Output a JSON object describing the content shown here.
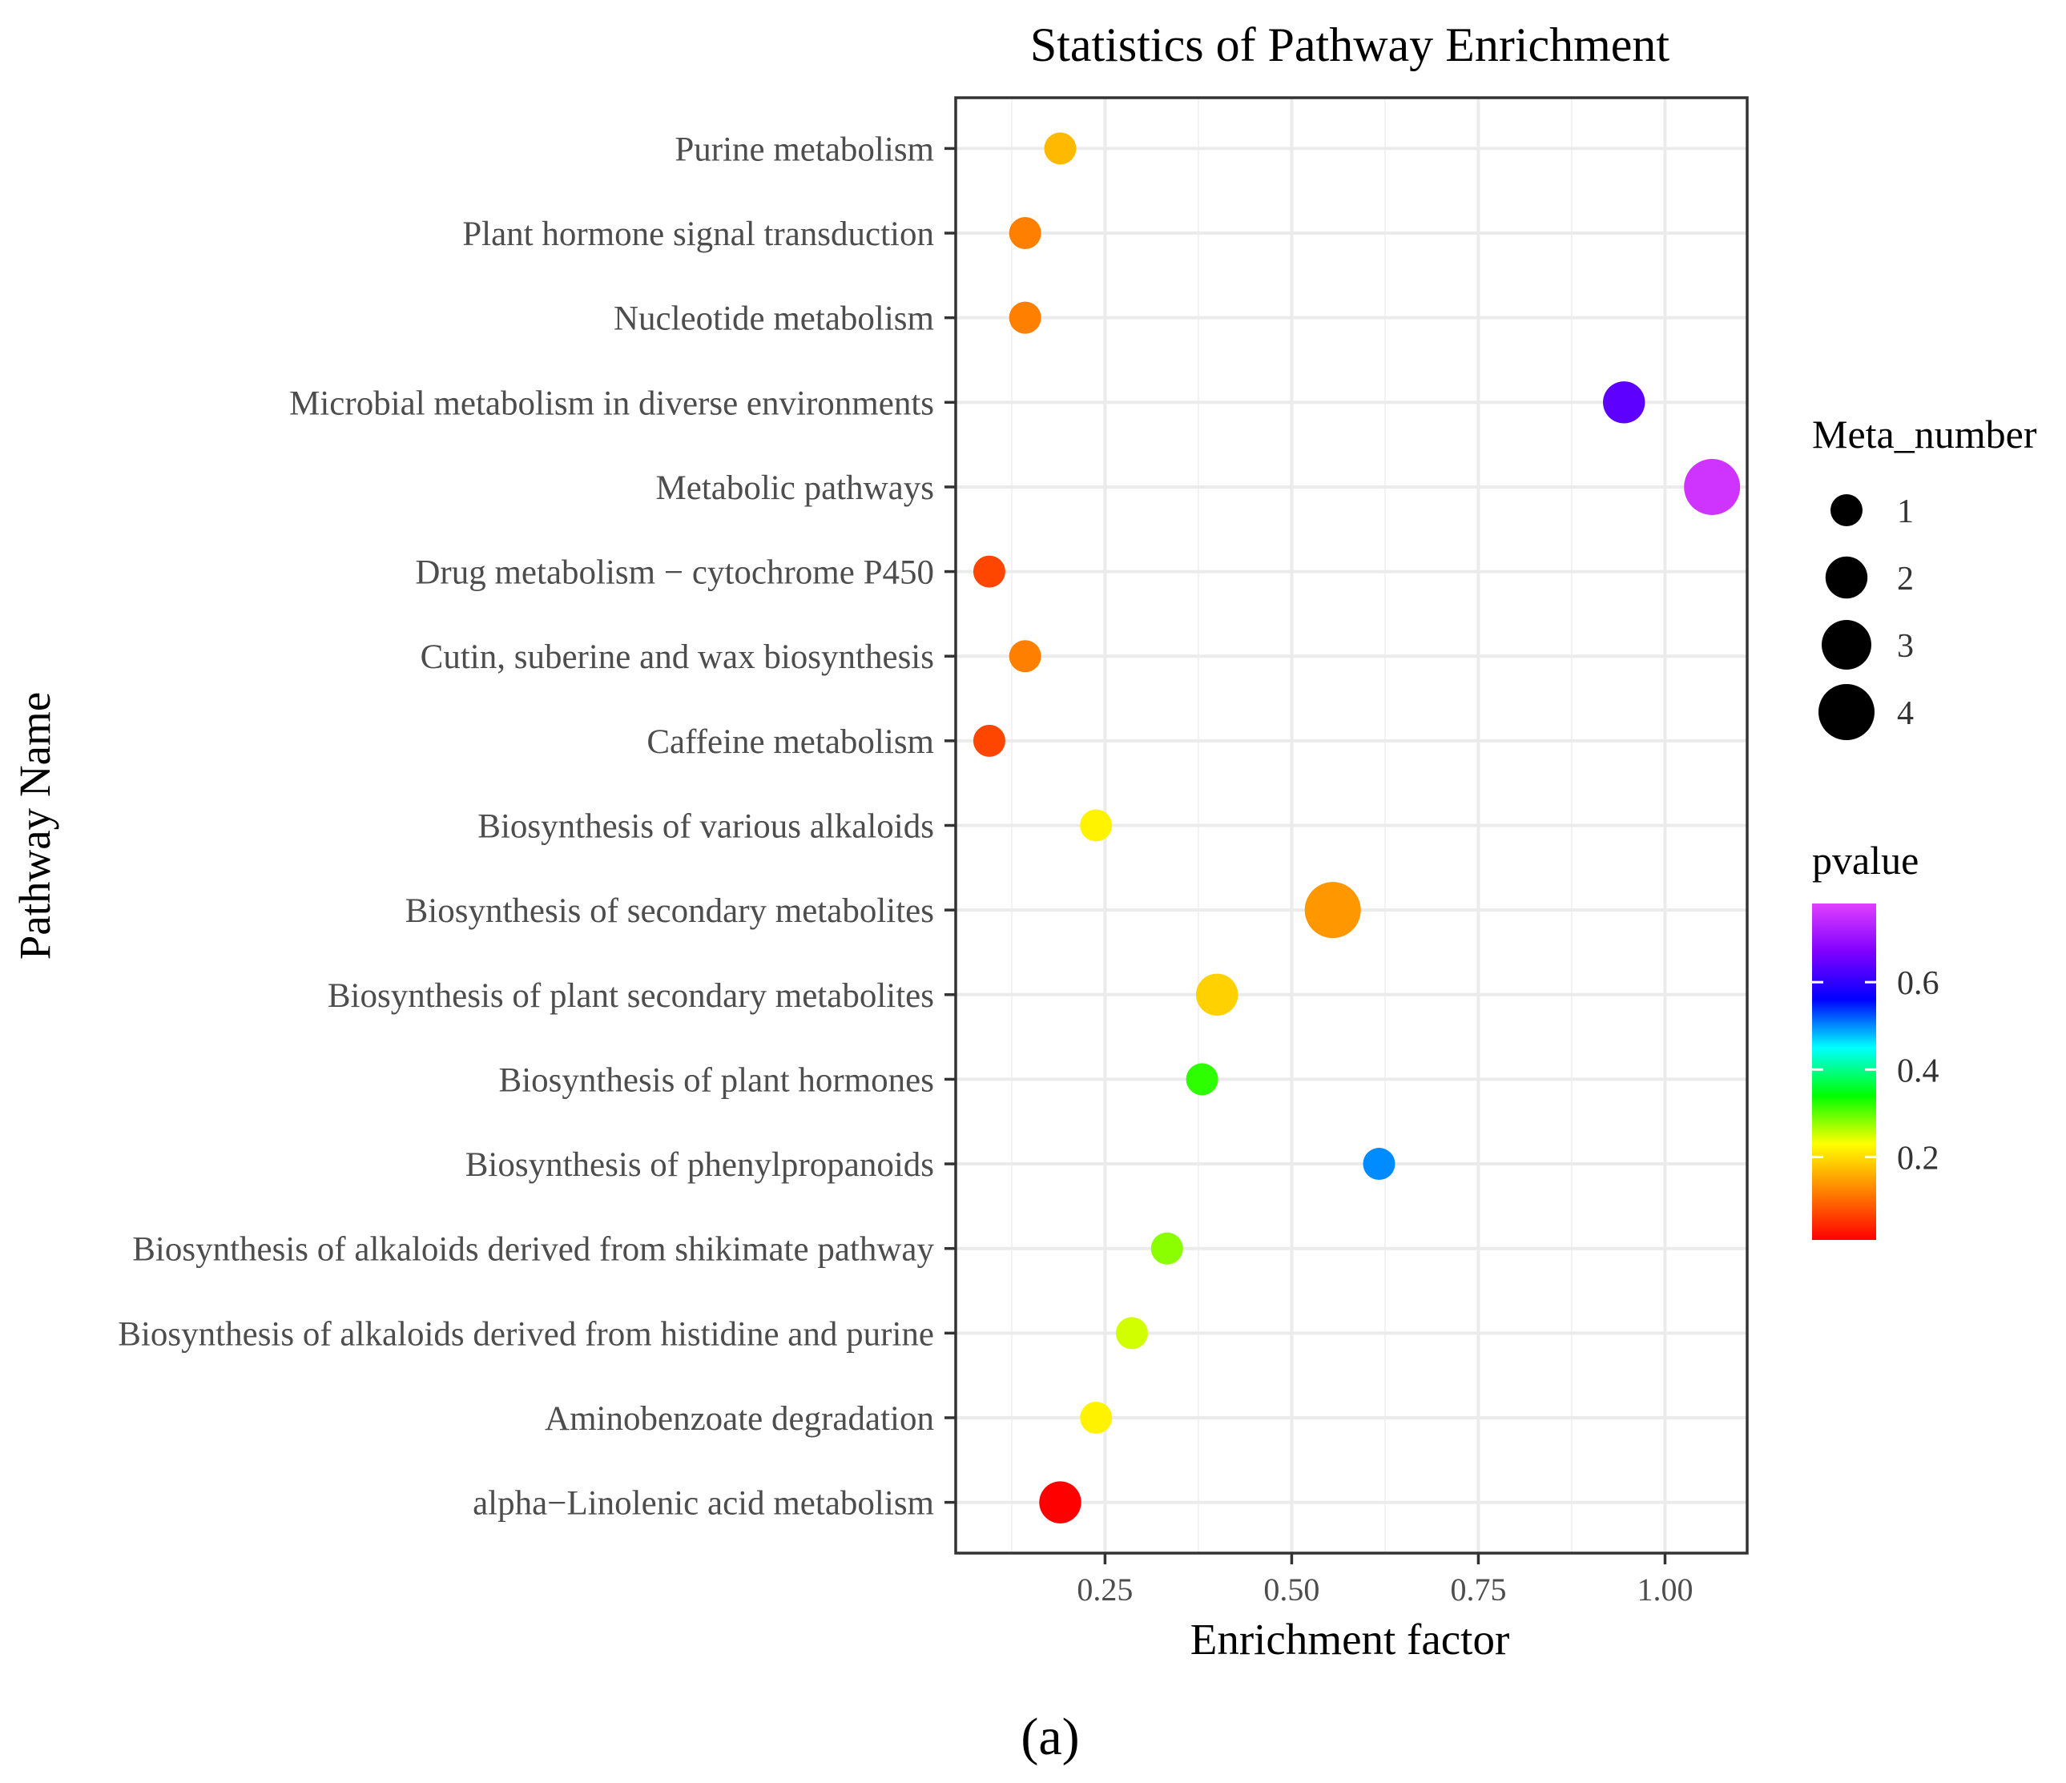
{
  "chart_data": {
    "type": "scatter",
    "title": "Statistics of Pathway Enrichment",
    "xlabel": "Enrichment factor",
    "ylabel": "Pathway Name",
    "xlim": [
      0.05,
      1.11
    ],
    "x_ticks": [
      0.25,
      0.5,
      0.75,
      1.0
    ],
    "x_tick_labels": [
      "0.25",
      "0.50",
      "0.75",
      "1.00"
    ],
    "grid": true,
    "points": [
      {
        "name": "Purine metabolism",
        "x": 0.19,
        "size": 1,
        "pvalue": 0.17
      },
      {
        "name": "Plant hormone signal transduction",
        "x": 0.143,
        "size": 1,
        "pvalue": 0.12
      },
      {
        "name": "Nucleotide metabolism",
        "x": 0.143,
        "size": 1,
        "pvalue": 0.12
      },
      {
        "name": "Microbial metabolism in diverse environments",
        "x": 0.945,
        "size": 2,
        "pvalue": 0.64
      },
      {
        "name": "Metabolic pathways",
        "x": 1.063,
        "size": 4,
        "pvalue": 0.76
      },
      {
        "name": "Drug metabolism − cytochrome P450",
        "x": 0.095,
        "size": 1,
        "pvalue": 0.07
      },
      {
        "name": "Cutin, suberine and wax biosynthesis",
        "x": 0.143,
        "size": 1,
        "pvalue": 0.12
      },
      {
        "name": "Caffeine metabolism",
        "x": 0.095,
        "size": 1,
        "pvalue": 0.07
      },
      {
        "name": "Biosynthesis of various alkaloids",
        "x": 0.238,
        "size": 1,
        "pvalue": 0.22
      },
      {
        "name": "Biosynthesis of secondary metabolites",
        "x": 0.555,
        "size": 4,
        "pvalue": 0.14
      },
      {
        "name": "Biosynthesis of plant secondary metabolites",
        "x": 0.4,
        "size": 2,
        "pvalue": 0.19
      },
      {
        "name": "Biosynthesis of plant hormones",
        "x": 0.38,
        "size": 1,
        "pvalue": 0.32
      },
      {
        "name": "Biosynthesis of phenylpropanoids",
        "x": 0.617,
        "size": 1,
        "pvalue": 0.5
      },
      {
        "name": "Biosynthesis of alkaloids derived from shikimate pathway",
        "x": 0.333,
        "size": 1,
        "pvalue": 0.28
      },
      {
        "name": "Biosynthesis of alkaloids derived from histidine and purine",
        "x": 0.286,
        "size": 1,
        "pvalue": 0.25
      },
      {
        "name": "Aminobenzoate degradation",
        "x": 0.238,
        "size": 1,
        "pvalue": 0.22
      },
      {
        "name": "alpha−Linolenic acid metabolism",
        "x": 0.19,
        "size": 2,
        "pvalue": 0.01
      }
    ],
    "size_legend": {
      "title": "Meta_number",
      "values": [
        1,
        2,
        3,
        4
      ],
      "labels": [
        "1",
        "2",
        "3",
        "4"
      ]
    },
    "color_legend": {
      "title": "pvalue",
      "range": [
        0.01,
        0.78
      ],
      "ticks": [
        0.2,
        0.4,
        0.6
      ],
      "tick_labels": [
        "0.2",
        "0.4",
        "0.6"
      ],
      "gradient_colors": [
        "#ff0000",
        "#ff8000",
        "#ffff00",
        "#00ff00",
        "#00ffff",
        "#0000ff",
        "#8000ff",
        "#e040ff"
      ]
    }
  },
  "caption": "(a)"
}
